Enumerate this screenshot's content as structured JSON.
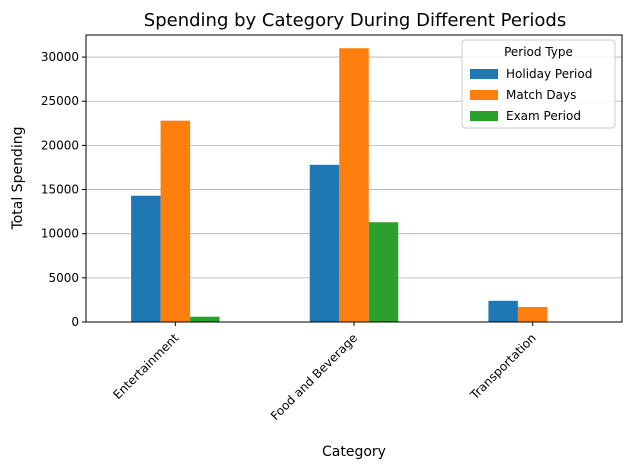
{
  "chart_data": {
    "type": "bar",
    "title": "Spending by Category During Different Periods",
    "xlabel": "Category",
    "ylabel": "Total Spending",
    "categories": [
      "Entertainment",
      "Food and Beverage",
      "Transportation"
    ],
    "series": [
      {
        "name": "Holiday Period",
        "values": [
          14300,
          17800,
          2400
        ],
        "color": "#1f77b4"
      },
      {
        "name": "Match Days",
        "values": [
          22800,
          31000,
          1700
        ],
        "color": "#ff7f0e"
      },
      {
        "name": "Exam Period",
        "values": [
          600,
          11300,
          0
        ],
        "color": "#2ca02c"
      }
    ],
    "ylim": [
      0,
      32500
    ],
    "yticks": [
      0,
      5000,
      10000,
      15000,
      20000,
      25000,
      30000
    ],
    "ytick_labels": [
      "0",
      "5000",
      "10000",
      "15000",
      "20000",
      "25000",
      "30000"
    ],
    "grid": "horizontal",
    "legend": {
      "title": "Period Type",
      "placement": "top-right"
    },
    "xtick_rotation": 45
  }
}
